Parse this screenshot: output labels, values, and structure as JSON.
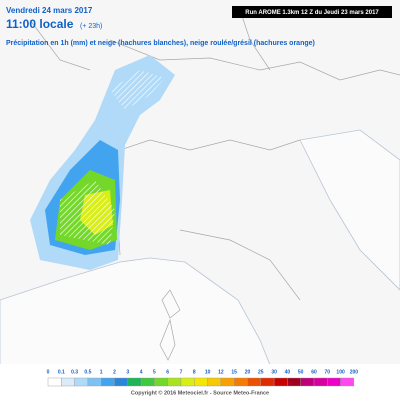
{
  "header": {
    "run": "Run AROME 1.3km 12 Z du Jeudi 23 mars 2017",
    "date": "Vendredi 24 mars 2017",
    "time": "11:00 locale",
    "lead": "(+ 23h)",
    "subtitle": "Précipitation en 1h (mm) et neige (hachures blanches), neige roulée/grésil (hachures orange)"
  },
  "legend": {
    "labels": [
      0,
      0.1,
      0.3,
      0.5,
      1,
      2,
      3,
      4,
      5,
      6,
      7,
      8,
      10,
      12,
      15,
      20,
      25,
      30,
      40,
      50,
      60,
      70,
      100,
      200
    ],
    "colors": [
      "#ffffff",
      "#d8ecfa",
      "#b0daf8",
      "#7cc2f2",
      "#42a4ee",
      "#2a86d8",
      "#1fb35a",
      "#40c840",
      "#74d82a",
      "#a8e41e",
      "#d8ee14",
      "#f4e800",
      "#f8c800",
      "#f8a000",
      "#f47c00",
      "#ec5000",
      "#e02a00",
      "#c80000",
      "#a0001e",
      "#c0007a",
      "#d8009e",
      "#ee00c8",
      "#ff48ee"
    ]
  },
  "footer": {
    "copyright": "Copyright © 2016 Meteociel.fr - Source Meteo-France"
  }
}
